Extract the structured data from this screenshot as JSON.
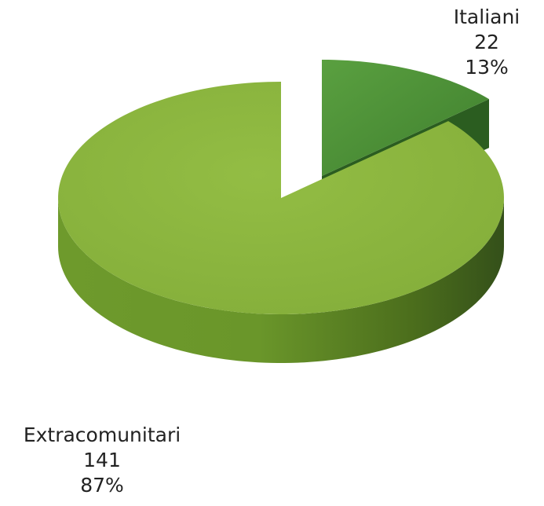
{
  "chart_data": {
    "type": "pie",
    "style": "3d-exploded",
    "slices": [
      {
        "label": "Italiani",
        "value": 22,
        "percent": "13%",
        "color": "#4e8a2e"
      },
      {
        "label": "Extracomunitari",
        "value": 141,
        "percent": "87%",
        "color": "#8db63c"
      }
    ]
  },
  "labels": {
    "italiani": {
      "name": "Italiani",
      "value": "22",
      "percent": "13%"
    },
    "extracomunitari": {
      "name": "Extracomunitari",
      "value": "141",
      "percent": "87%"
    }
  }
}
